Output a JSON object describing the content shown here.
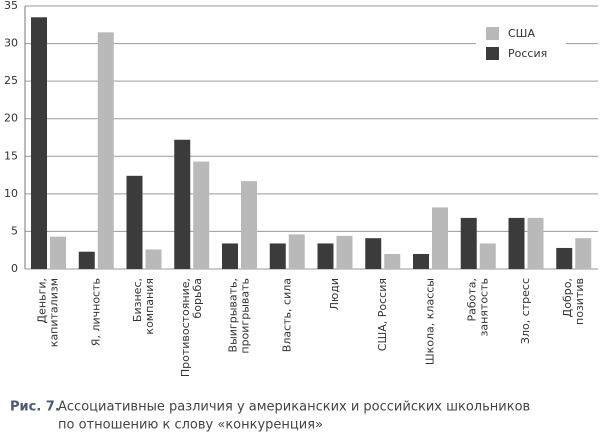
{
  "chart_data": {
    "type": "bar",
    "categories": [
      "Деньги, капитализм",
      "Я, личность",
      "Бизнес, компания",
      "Противостояние, борьба",
      "Выигрывать, проигрывать",
      "Власть, сила",
      "Люди",
      "США, Россия",
      "Школа, классы",
      "Работа, занятость",
      "Зло, стресс",
      "Добро, позитив"
    ],
    "series": [
      {
        "name": "США",
        "color": "#b9b9b9",
        "values": [
          4.3,
          31.5,
          2.6,
          14.3,
          11.7,
          4.6,
          4.4,
          2.0,
          8.2,
          3.4,
          6.8,
          4.1
        ]
      },
      {
        "name": "Россия",
        "color": "#3b3b3b",
        "values": [
          33.5,
          2.3,
          12.4,
          17.2,
          3.4,
          3.4,
          3.4,
          4.1,
          2.0,
          6.8,
          6.8,
          2.8
        ]
      }
    ],
    "ylim": [
      0,
      35
    ],
    "yticks": [
      0,
      5,
      10,
      15,
      20,
      25,
      30,
      35
    ],
    "grid": true,
    "legend": "upper right"
  },
  "caption": {
    "label": "Рис. 7.",
    "lines": [
      "Ассоциативные различия у американских и российских школьников",
      "по отношению к слову «конкуренция»"
    ]
  }
}
